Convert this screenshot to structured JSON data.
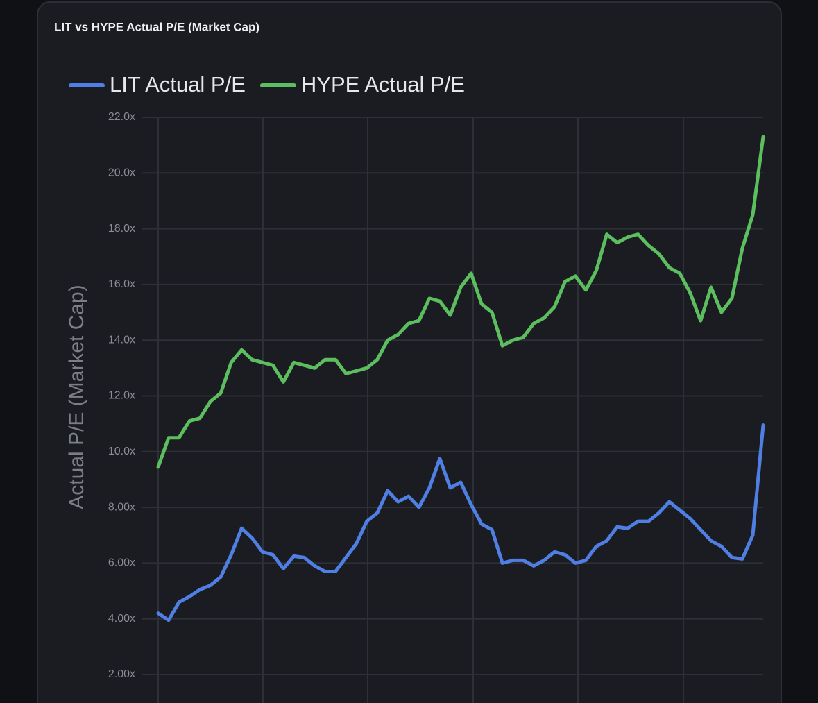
{
  "chart_data": {
    "type": "line",
    "title": "LIT vs HYPE Actual P/E (Market Cap)",
    "y_label": "Actual P/E (Market Cap)",
    "categories": [
      null,
      null,
      null,
      null,
      null,
      null,
      null,
      null,
      null,
      null,
      null,
      null,
      null,
      null,
      null,
      null,
      null,
      null,
      null,
      null,
      null,
      null,
      null,
      null,
      null,
      null,
      null,
      null,
      null,
      null,
      null,
      null,
      null,
      null,
      null,
      null,
      null,
      null,
      null,
      null,
      null,
      null,
      null,
      null,
      null,
      null,
      null,
      null,
      null,
      null,
      null,
      null,
      null,
      null,
      null,
      null,
      null,
      null,
      null
    ],
    "series": [
      {
        "name": "LIT Actual P/E",
        "color": "#4f7fe3",
        "values": [
          4.2,
          3.95,
          4.6,
          4.8,
          5.05,
          5.2,
          5.5,
          6.3,
          7.25,
          6.9,
          6.4,
          6.3,
          5.8,
          6.25,
          6.2,
          5.9,
          5.7,
          5.7,
          6.2,
          6.7,
          7.5,
          7.8,
          8.6,
          8.2,
          8.4,
          8.0,
          8.7,
          9.75,
          8.7,
          8.9,
          8.1,
          7.4,
          7.2,
          6.0,
          6.1,
          6.1,
          5.9,
          6.1,
          6.4,
          6.3,
          6.0,
          6.1,
          6.6,
          6.8,
          7.3,
          7.25,
          7.5,
          7.5,
          7.8,
          8.2,
          7.9,
          7.6,
          7.2,
          6.8,
          6.6,
          6.2,
          6.15,
          7.0,
          10.95
        ]
      },
      {
        "name": "HYPE Actual P/E",
        "color": "#5cbe5e",
        "values": [
          9.45,
          10.5,
          10.5,
          11.1,
          11.2,
          11.8,
          12.1,
          13.2,
          13.65,
          13.3,
          13.2,
          13.1,
          12.5,
          13.2,
          13.1,
          13.0,
          13.3,
          13.3,
          12.8,
          12.9,
          13.0,
          13.3,
          14.0,
          14.2,
          14.6,
          14.7,
          15.5,
          15.4,
          14.9,
          15.9,
          16.4,
          15.3,
          15.0,
          13.8,
          14.0,
          14.1,
          14.6,
          14.8,
          15.2,
          16.1,
          16.3,
          15.8,
          16.5,
          17.8,
          17.5,
          17.7,
          17.8,
          17.4,
          17.1,
          16.6,
          16.4,
          15.7,
          14.7,
          15.9,
          15.0,
          15.5,
          17.3,
          18.5,
          21.3
        ]
      }
    ],
    "ylim": [
      2,
      22
    ],
    "yticks": [
      {
        "value": 2,
        "label": "2.00x"
      },
      {
        "value": 4,
        "label": "4.00x"
      },
      {
        "value": 6,
        "label": "6.00x"
      },
      {
        "value": 8,
        "label": "8.00x"
      },
      {
        "value": 10,
        "label": "10.0x"
      },
      {
        "value": 12,
        "label": "12.0x"
      },
      {
        "value": 14,
        "label": "14.0x"
      },
      {
        "value": 16,
        "label": "16.0x"
      },
      {
        "value": 18,
        "label": "18.0x"
      },
      {
        "value": 20,
        "label": "20.0x"
      },
      {
        "value": 22,
        "label": "22.0x"
      }
    ],
    "grid": true
  }
}
